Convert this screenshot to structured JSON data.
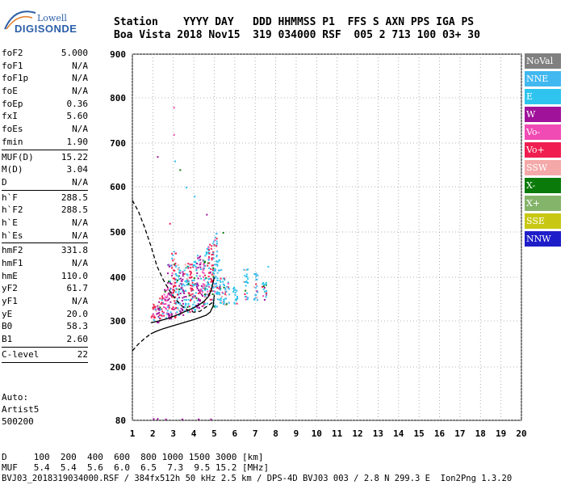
{
  "logo": {
    "top": "Lowell",
    "bottom": "DIGISONDE"
  },
  "header": {
    "line1": "Station    YYYY DAY   DDD HHMMSS P1  FFS S AXN PPS IGA PS",
    "line2": "Boa Vista 2018 Nov15  319 034000 RSF  005 2 713 100 03+ 30"
  },
  "params_group1": [
    {
      "name": "foF2",
      "value": "5.000"
    },
    {
      "name": "foF1",
      "value": "N/A"
    },
    {
      "name": "foF1p",
      "value": "N/A"
    },
    {
      "name": "foE",
      "value": "N/A"
    },
    {
      "name": "foEp",
      "value": "0.36"
    },
    {
      "name": "fxI",
      "value": "5.60"
    },
    {
      "name": "foEs",
      "value": "N/A"
    },
    {
      "name": "fmin",
      "value": "1.90"
    }
  ],
  "params_group2": [
    {
      "name": "MUF(D)",
      "value": "15.22"
    },
    {
      "name": "M(D)",
      "value": "3.04"
    },
    {
      "name": "D",
      "value": "N/A"
    }
  ],
  "params_group3": [
    {
      "name": "h`F",
      "value": "288.5"
    },
    {
      "name": "h`F2",
      "value": "288.5"
    },
    {
      "name": "h`E",
      "value": "N/A"
    },
    {
      "name": "h`Es",
      "value": "N/A"
    }
  ],
  "params_group4": [
    {
      "name": "hmF2",
      "value": "331.8"
    },
    {
      "name": "hmF1",
      "value": "N/A"
    },
    {
      "name": "hmE",
      "value": "110.0"
    },
    {
      "name": "yF2",
      "value": "61.7"
    },
    {
      "name": "yF1",
      "value": "N/A"
    },
    {
      "name": "yE",
      "value": "20.0"
    },
    {
      "name": "B0",
      "value": "58.3"
    },
    {
      "name": "B1",
      "value": "2.60"
    }
  ],
  "params_group5": [
    {
      "name": "C-level",
      "value": "22"
    }
  ],
  "auto": {
    "line1": "Auto:",
    "line2": "Artist5",
    "line3": "500200"
  },
  "bottom": {
    "line_d": "D     100  200  400  600  800 1000 1500 3000 [km]",
    "line_muf": "MUF   5.4  5.4  5.6  6.0  6.5  7.3  9.5 15.2 [MHz]",
    "line_file": "BVJ03_2018319034000.RSF / 384fx512h 50 kHz 2.5 km / DPS-4D BVJ03 003 / 2.8 N 299.3 E  Ion2Png 1.3.20"
  },
  "legend": [
    {
      "label": "NoVal",
      "color": "#808080"
    },
    {
      "label": "NNE",
      "color": "#41b8f0"
    },
    {
      "label": "E",
      "color": "#2ec4ee"
    },
    {
      "label": "W",
      "color": "#a0129a"
    },
    {
      "label": "Vo-",
      "color": "#f04ab4"
    },
    {
      "label": "Vo+",
      "color": "#f01e50"
    },
    {
      "label": "SSW",
      "color": "#f4a8a8"
    },
    {
      "label": "X-",
      "color": "#0a7a0a"
    },
    {
      "label": "X+",
      "color": "#84b46a"
    },
    {
      "label": "SSE",
      "color": "#c8c814"
    },
    {
      "label": "NNW",
      "color": "#1e1ec8"
    }
  ],
  "chart_data": {
    "type": "scatter",
    "xlim": [
      1,
      20
    ],
    "ylim": [
      80,
      900
    ],
    "x_ticks": [
      "1",
      "2",
      "3",
      "4",
      "5",
      "6",
      "7",
      "8",
      "9",
      "10",
      "11",
      "12",
      "13",
      "14",
      "15",
      "16",
      "17",
      "18",
      "19",
      "20"
    ],
    "y_ticks": [
      "80",
      "200",
      "300",
      "400",
      "500",
      "600",
      "700",
      "800",
      "900"
    ],
    "y_tick_values": [
      80,
      200,
      300,
      400,
      500,
      600,
      700,
      800,
      900
    ],
    "grid": true,
    "legend_position": "right",
    "traces": [
      {
        "x": 2.0,
        "y1": 300,
        "y2": 340,
        "color": "#f01e50"
      },
      {
        "x": 2.2,
        "y1": 298,
        "y2": 345,
        "color": "#a0129a"
      },
      {
        "x": 2.4,
        "y1": 300,
        "y2": 360,
        "color": "#f01e50"
      },
      {
        "x": 2.6,
        "y1": 302,
        "y2": 380,
        "color": "#f04ab4"
      },
      {
        "x": 2.8,
        "y1": 305,
        "y2": 430,
        "color": "#a0129a"
      },
      {
        "x": 3.0,
        "y1": 308,
        "y2": 460,
        "color": "#f01e50"
      },
      {
        "x": 3.2,
        "y1": 312,
        "y2": 430,
        "color": "#2ec4ee"
      },
      {
        "x": 3.4,
        "y1": 315,
        "y2": 420,
        "color": "#a0129a"
      },
      {
        "x": 3.6,
        "y1": 320,
        "y2": 430,
        "color": "#2ec4ee"
      },
      {
        "x": 3.8,
        "y1": 322,
        "y2": 440,
        "color": "#f01e50"
      },
      {
        "x": 4.0,
        "y1": 325,
        "y2": 440,
        "color": "#2ec4ee"
      },
      {
        "x": 4.2,
        "y1": 330,
        "y2": 450,
        "color": "#a0129a"
      },
      {
        "x": 4.4,
        "y1": 335,
        "y2": 460,
        "color": "#f04ab4"
      },
      {
        "x": 4.6,
        "y1": 340,
        "y2": 470,
        "color": "#2ec4ee"
      },
      {
        "x": 4.8,
        "y1": 345,
        "y2": 480,
        "color": "#f01e50"
      },
      {
        "x": 5.0,
        "y1": 330,
        "y2": 500,
        "color": "#41b8f0"
      },
      {
        "x": 5.2,
        "y1": 340,
        "y2": 440,
        "color": "#2ec4ee"
      },
      {
        "x": 5.4,
        "y1": 340,
        "y2": 400,
        "color": "#2ec4ee"
      },
      {
        "x": 5.6,
        "y1": 335,
        "y2": 390,
        "color": "#41b8f0"
      },
      {
        "x": 6.0,
        "y1": 340,
        "y2": 380,
        "color": "#2ec4ee"
      },
      {
        "x": 6.5,
        "y1": 345,
        "y2": 420,
        "color": "#2ec4ee"
      },
      {
        "x": 7.0,
        "y1": 345,
        "y2": 410,
        "color": "#41b8f0"
      },
      {
        "x": 7.4,
        "y1": 350,
        "y2": 390,
        "color": "#2ec4ee"
      }
    ],
    "sparse_points": [
      {
        "x": 2.2,
        "y": 670,
        "color": "#a0129a"
      },
      {
        "x": 3.0,
        "y": 780,
        "color": "#f04ab4"
      },
      {
        "x": 3.0,
        "y": 720,
        "color": "#f04ab4"
      },
      {
        "x": 3.05,
        "y": 660,
        "color": "#2ec4ee"
      },
      {
        "x": 3.3,
        "y": 640,
        "color": "#0a7a0a"
      },
      {
        "x": 3.6,
        "y": 600,
        "color": "#2ec4ee"
      },
      {
        "x": 4.0,
        "y": 580,
        "color": "#2ec4ee"
      },
      {
        "x": 2.8,
        "y": 520,
        "color": "#f01e50"
      },
      {
        "x": 4.6,
        "y": 540,
        "color": "#a0129a"
      },
      {
        "x": 5.4,
        "y": 500,
        "color": "#0a7a0a"
      },
      {
        "x": 7.6,
        "y": 425,
        "color": "#2ec4ee"
      },
      {
        "x": 2.0,
        "y": 85,
        "color": "#a0129a"
      },
      {
        "x": 2.2,
        "y": 85,
        "color": "#a0129a"
      },
      {
        "x": 2.6,
        "y": 84,
        "color": "#a0129a"
      },
      {
        "x": 3.4,
        "y": 84,
        "color": "#a0129a"
      },
      {
        "x": 4.2,
        "y": 84,
        "color": "#a0129a"
      },
      {
        "x": 4.8,
        "y": 84,
        "color": "#a0129a"
      }
    ],
    "dashed_profile": [
      [
        1.0,
        570
      ],
      [
        1.3,
        545
      ],
      [
        1.6,
        510
      ],
      [
        1.9,
        470
      ],
      [
        2.2,
        425
      ],
      [
        2.5,
        395
      ],
      [
        2.8,
        370
      ],
      [
        3.1,
        350
      ],
      [
        3.4,
        335
      ],
      [
        3.7,
        325
      ],
      [
        4.0,
        320
      ],
      [
        4.3,
        322
      ],
      [
        4.6,
        332
      ],
      [
        5.0,
        345
      ]
    ],
    "dashed_low": [
      [
        1.0,
        235
      ],
      [
        1.3,
        250
      ],
      [
        1.6,
        262
      ],
      [
        1.9,
        272
      ]
    ],
    "solid_profile": [
      [
        1.9,
        272
      ],
      [
        2.2,
        278
      ],
      [
        2.5,
        283
      ],
      [
        2.8,
        287
      ],
      [
        3.1,
        291
      ],
      [
        3.4,
        295
      ],
      [
        3.7,
        299
      ],
      [
        4.0,
        303
      ],
      [
        4.3,
        308
      ],
      [
        4.6,
        313
      ],
      [
        4.8,
        320
      ],
      [
        4.95,
        335
      ],
      [
        5.0,
        360
      ]
    ],
    "fit_line": [
      [
        1.9,
        296
      ],
      [
        2.3,
        300
      ],
      [
        2.7,
        305
      ],
      [
        3.1,
        312
      ],
      [
        3.5,
        320
      ],
      [
        3.9,
        328
      ],
      [
        4.2,
        335
      ],
      [
        4.5,
        345
      ],
      [
        4.7,
        355
      ],
      [
        4.85,
        370
      ],
      [
        5.0,
        400
      ]
    ]
  }
}
